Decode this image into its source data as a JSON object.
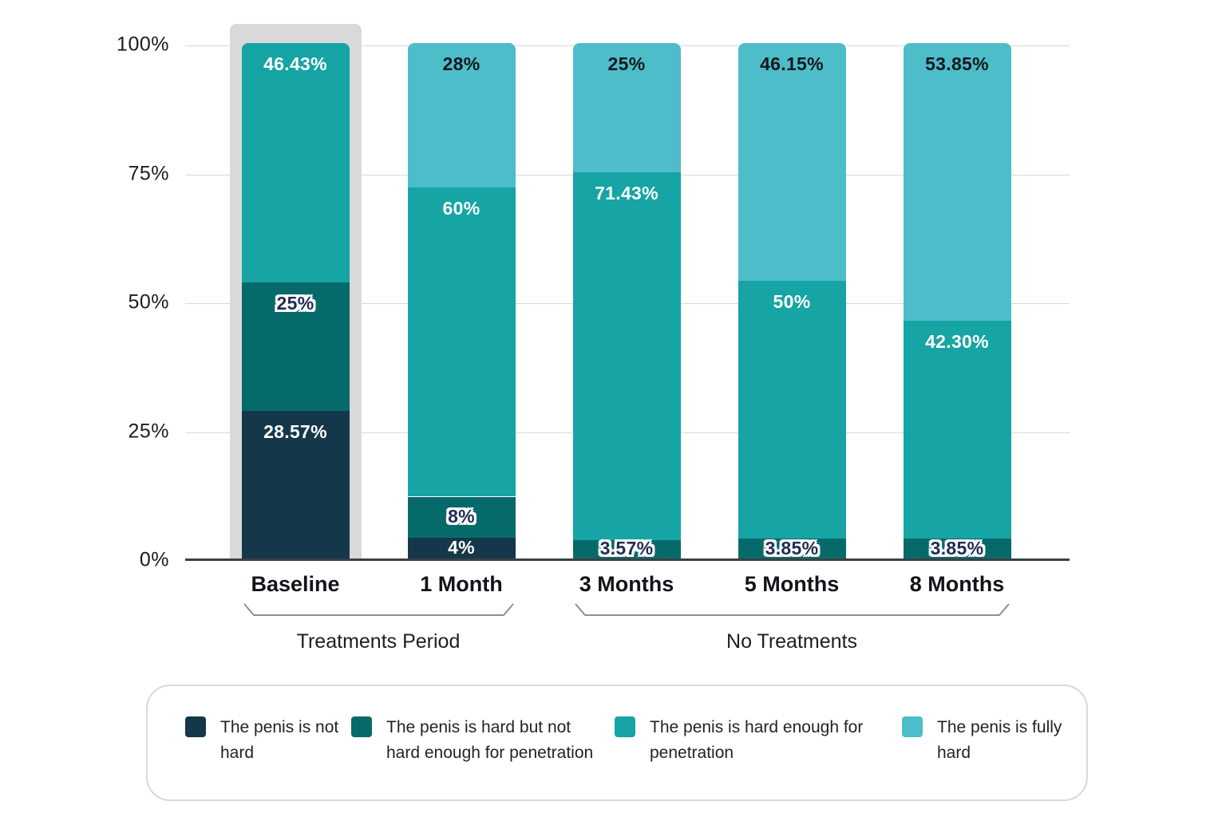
{
  "chart_data": {
    "type": "bar",
    "subtype": "stacked-percent",
    "title": "",
    "categories": [
      "Baseline",
      "1 Month",
      "3 Months",
      "5 Months",
      "8 Months"
    ],
    "series": [
      {
        "name": "The penis is not hard",
        "color": "#14384a",
        "label_style": "white",
        "values": [
          28.57,
          4,
          0,
          0,
          0
        ],
        "labels": [
          "28.57%",
          "4%",
          "",
          "",
          ""
        ]
      },
      {
        "name": "The penis is hard but not hard enough for penetration",
        "color": "#076a6a",
        "label_style": "outline",
        "values": [
          25,
          8,
          3.57,
          3.85,
          3.85
        ],
        "labels": [
          "25%",
          "8%",
          "3.57%",
          "3.85%",
          "3.85%"
        ]
      },
      {
        "name": "The penis is hard enough for penetration",
        "color": "#16a4a4",
        "label_style": "white",
        "values": [
          46.43,
          60,
          71.43,
          50,
          42.3
        ],
        "labels": [
          "46.43%",
          "60%",
          "71.43%",
          "50%",
          "42.30%"
        ]
      },
      {
        "name": "The penis is fully hard",
        "color": "#4dbdca",
        "label_style": "dark",
        "values": [
          0,
          28,
          25,
          46.15,
          53.85
        ],
        "labels": [
          "",
          "28%",
          "25%",
          "46.15%",
          "53.85%"
        ]
      }
    ],
    "y_ticks": [
      {
        "value": 100,
        "label": "100%"
      },
      {
        "value": 75,
        "label": "75%"
      },
      {
        "value": 50,
        "label": "50%"
      },
      {
        "value": 25,
        "label": "25%"
      },
      {
        "value": 0,
        "label": "0%"
      }
    ],
    "ylim": [
      0,
      100
    ],
    "grid": true,
    "legend_position": "bottom",
    "highlight": {
      "category": "Baseline",
      "color": "#d9d9d9"
    },
    "groups": [
      {
        "label": "Treatments Period",
        "from": 0,
        "to": 1
      },
      {
        "label": "No Treatments",
        "from": 2,
        "to": 4
      }
    ]
  },
  "colors": {
    "gridline": "#d9d9d9",
    "axis": "#3b4045",
    "bracket": "#8b8f96",
    "legend_border": "#d9d9d9",
    "label_white": "#ffffff",
    "label_dark": "#15181d",
    "label_outline_text": "#232c55"
  }
}
